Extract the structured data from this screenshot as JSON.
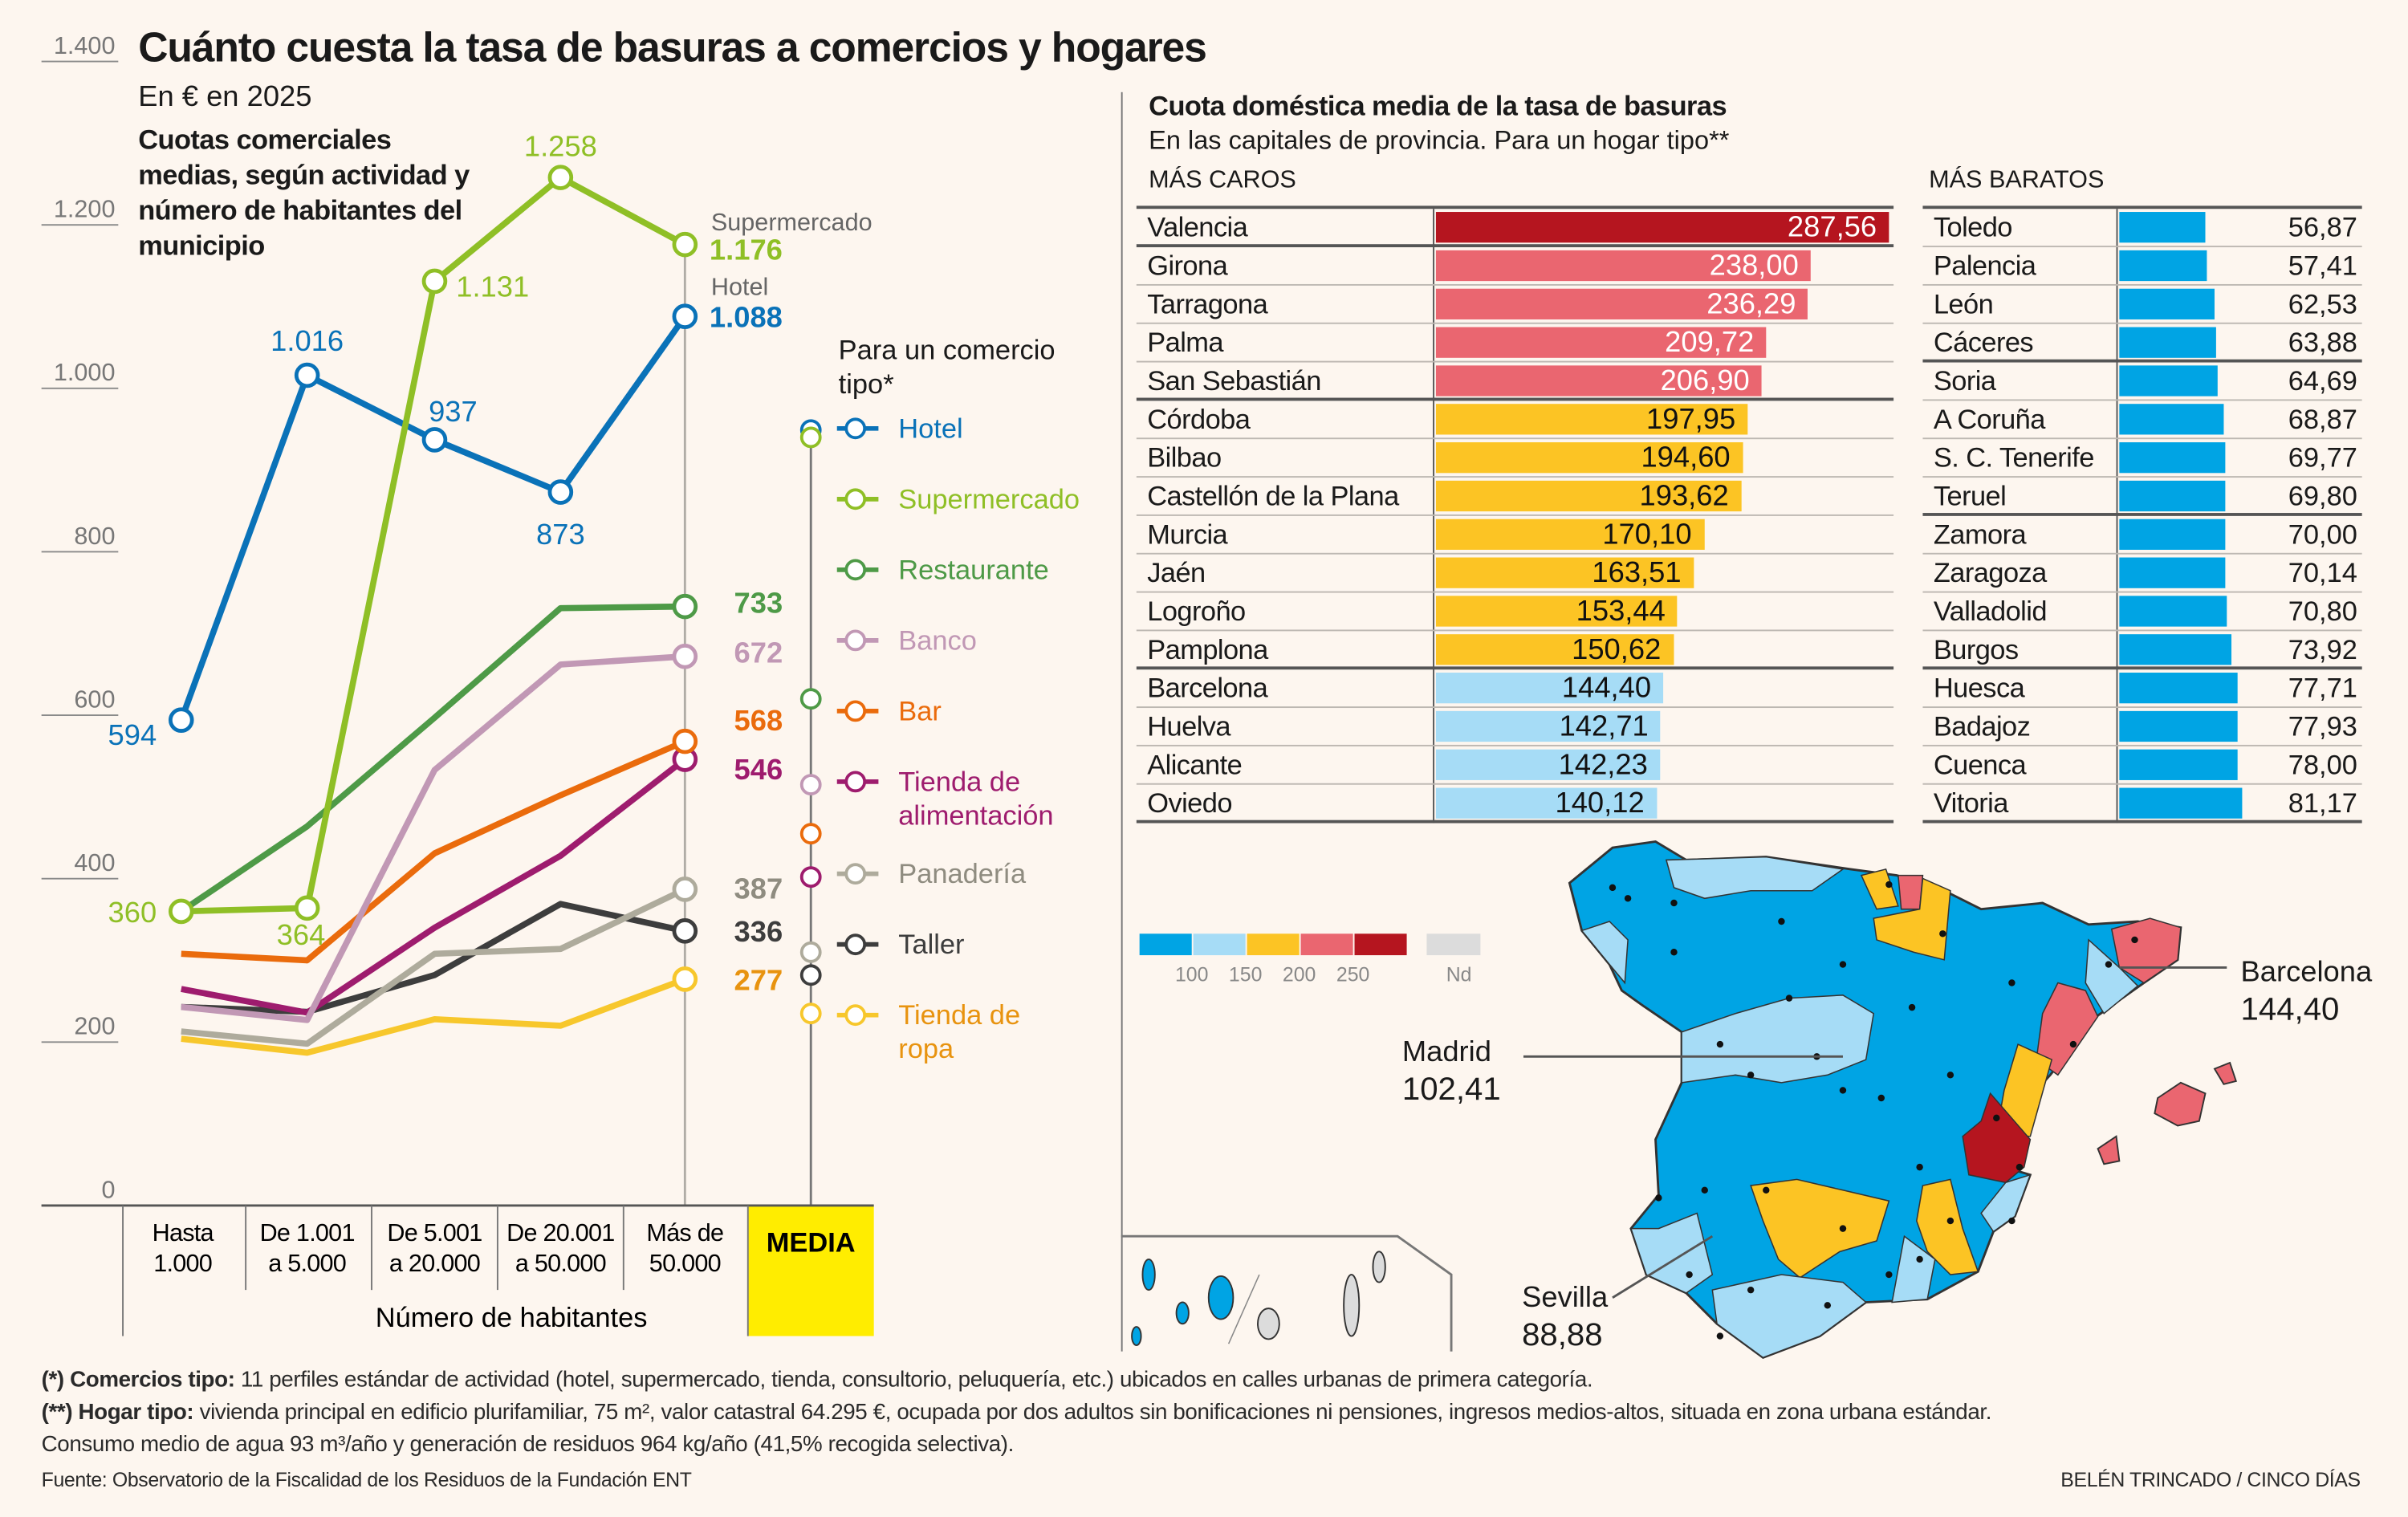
{
  "title": "Cuánto cuesta la tasa de basuras a comercios y hogares",
  "unit": "En € en 2025",
  "chart_data": [
    {
      "type": "line",
      "title": "Cuotas comerciales medias, según actividad y número de habitantes del municipio",
      "xlabel": "Número de habitantes",
      "ylabel": "",
      "categories": [
        [
          "Hasta",
          "1.000"
        ],
        [
          "De 1.001",
          "a 5.000"
        ],
        [
          "De 5.001",
          "a 20.000"
        ],
        [
          "De 20.001",
          "a 50.000"
        ],
        [
          "Más de",
          "50.000"
        ]
      ],
      "media_label": "MEDIA",
      "ylim": [
        0,
        1400
      ],
      "yticks": [
        0,
        200,
        400,
        600,
        800,
        1000,
        1200,
        1400
      ],
      "ytick_labels": [
        "0",
        "200",
        "400",
        "600",
        "800",
        "1.000",
        "1.200",
        "1.400"
      ],
      "grid": false,
      "legend_title": "Para un comercio tipo*",
      "legend_placement": "right",
      "end_headers": {
        "supermercado": "Supermercado",
        "hotel": "Hotel"
      },
      "series": [
        {
          "name": "Hotel",
          "color": "#0a72b8",
          "values": [
            594,
            1016,
            937,
            873,
            1088
          ],
          "media": 949,
          "labels": [
            "594",
            "1.016",
            "937",
            "873",
            "1.088"
          ]
        },
        {
          "name": "Supermercado",
          "color": "#8fbf26",
          "values": [
            360,
            364,
            1131,
            1258,
            1176
          ],
          "media": 940,
          "labels": [
            "360",
            "364",
            "1.131",
            "1.258",
            "1.176"
          ]
        },
        {
          "name": "Restaurante",
          "color": "#4e9a47",
          "values": [
            360,
            464,
            597,
            731,
            733
          ],
          "media": 620,
          "labels": [
            null,
            null,
            null,
            null,
            "733"
          ]
        },
        {
          "name": "Banco",
          "color": "#c198b5",
          "values": [
            243,
            227,
            533,
            662,
            672
          ],
          "media": 515,
          "labels": [
            null,
            null,
            null,
            null,
            "672"
          ]
        },
        {
          "name": "Bar",
          "color": "#ea6b0c",
          "values": [
            308,
            300,
            431,
            502,
            568
          ],
          "media": 455,
          "labels": [
            null,
            null,
            null,
            null,
            "568"
          ]
        },
        {
          "name": "Tienda de alimentación",
          "name_lines": [
            "Tienda de",
            "alimentación"
          ],
          "color": "#9e1c6e",
          "values": [
            265,
            236,
            340,
            428,
            546
          ],
          "media": 402,
          "labels": [
            null,
            null,
            null,
            null,
            "546"
          ]
        },
        {
          "name": "Panadería",
          "color": "#aeab9c",
          "values": [
            213,
            198,
            308,
            314,
            387
          ],
          "media": 310,
          "labels": [
            null,
            null,
            null,
            null,
            "387"
          ]
        },
        {
          "name": "Taller",
          "color": "#3d3d3d",
          "values": [
            243,
            237,
            282,
            369,
            336
          ],
          "media": 282,
          "labels": [
            null,
            null,
            null,
            null,
            "336"
          ]
        },
        {
          "name": "Tienda de ropa",
          "name_lines": [
            "Tienda de",
            "ropa"
          ],
          "color": "#f7c72c",
          "label_color": "#e8930f",
          "values": [
            204,
            187,
            228,
            220,
            277
          ],
          "media": 235,
          "labels": [
            null,
            null,
            null,
            null,
            "277"
          ]
        }
      ]
    },
    {
      "type": "bar",
      "title": "Cuota doméstica media de la tasa de basuras",
      "subtitle": "En las capitales de provincia. Para un hogar tipo**",
      "groups": [
        {
          "heading": "MÁS CAROS",
          "rows": [
            {
              "city": "Valencia",
              "value": 287.56,
              "label": "287,56"
            },
            {
              "city": "Girona",
              "value": 238.0,
              "label": "238,00"
            },
            {
              "city": "Tarragona",
              "value": 236.29,
              "label": "236,29"
            },
            {
              "city": "Palma",
              "value": 209.72,
              "label": "209,72"
            },
            {
              "city": "San Sebastián",
              "value": 206.9,
              "label": "206,90"
            },
            {
              "city": "Córdoba",
              "value": 197.95,
              "label": "197,95"
            },
            {
              "city": "Bilbao",
              "value": 194.6,
              "label": "194,60"
            },
            {
              "city": "Castellón de la Plana",
              "value": 193.62,
              "label": "193,62"
            },
            {
              "city": "Murcia",
              "value": 170.1,
              "label": "170,10"
            },
            {
              "city": "Jaén",
              "value": 163.51,
              "label": "163,51"
            },
            {
              "city": "Logroño",
              "value": 153.44,
              "label": "153,44"
            },
            {
              "city": "Pamplona",
              "value": 150.62,
              "label": "150,62"
            },
            {
              "city": "Barcelona",
              "value": 144.4,
              "label": "144,40"
            },
            {
              "city": "Huelva",
              "value": 142.71,
              "label": "142,71"
            },
            {
              "city": "Alicante",
              "value": 142.23,
              "label": "142,23"
            },
            {
              "city": "Oviedo",
              "value": 140.12,
              "label": "140,12"
            }
          ]
        },
        {
          "heading": "MÁS BARATOS",
          "rows": [
            {
              "city": "Toledo",
              "value": 56.87,
              "label": "56,87"
            },
            {
              "city": "Palencia",
              "value": 57.41,
              "label": "57,41"
            },
            {
              "city": "León",
              "value": 62.53,
              "label": "62,53"
            },
            {
              "city": "Cáceres",
              "value": 63.88,
              "label": "63,88"
            },
            {
              "city": "Soria",
              "value": 64.69,
              "label": "64,69"
            },
            {
              "city": "A Coruña",
              "value": 68.87,
              "label": "68,87"
            },
            {
              "city": "S. C. Tenerife",
              "value": 69.77,
              "label": "69,77"
            },
            {
              "city": "Teruel",
              "value": 69.8,
              "label": "69,80"
            },
            {
              "city": "Zamora",
              "value": 70.0,
              "label": "70,00"
            },
            {
              "city": "Zaragoza",
              "value": 70.14,
              "label": "70,14"
            },
            {
              "city": "Valladolid",
              "value": 70.8,
              "label": "70,80"
            },
            {
              "city": "Burgos",
              "value": 73.92,
              "label": "73,92"
            },
            {
              "city": "Huesca",
              "value": 77.71,
              "label": "77,71"
            },
            {
              "city": "Badajoz",
              "value": 77.93,
              "label": "77,93"
            },
            {
              "city": "Cuenca",
              "value": 78.0,
              "label": "78,00"
            },
            {
              "city": "Vitoria",
              "value": 81.17,
              "label": "81,17"
            }
          ]
        }
      ]
    }
  ],
  "map": {
    "legend": [
      {
        "color": "#00a4e4",
        "label": "100"
      },
      {
        "color": "#a6dcf6",
        "label": "150"
      },
      {
        "color": "#fcc424",
        "label": "200"
      },
      {
        "color": "#ea6670",
        "label": "250"
      },
      {
        "color": "#b5151f",
        "label": ""
      },
      {
        "color": "#dcdcdc",
        "label": "Nd"
      }
    ],
    "callouts": [
      {
        "city": "Madrid",
        "value": "102,41"
      },
      {
        "city": "Barcelona",
        "value": "144,40"
      },
      {
        "city": "Sevilla",
        "value": "88,88"
      }
    ]
  },
  "footnotes": {
    "note1_bold": "(*) Comercios tipo:",
    "note1": " 11 perfiles estándar de actividad (hotel, supermercado, tienda, consultorio, peluquería, etc.) ubicados en calles urbanas de primera categoría.",
    "note2_bold": "(**) Hogar tipo:",
    "note2": " vivienda principal en edificio plurifamiliar, 75 m², valor catastral 64.295 €, ocupada por dos adultos sin bonificaciones ni pensiones, ingresos medios-altos, situada en zona urbana estándar.",
    "note3": "Consumo medio de agua 93 m³/año y generación de residuos 964 kg/año (41,5% recogida selectiva).",
    "source": "Fuente: Observatorio de la Fiscalidad de los Residuos de la Fundación ENT",
    "credit": "BELÉN TRINCADO / CINCO DÍAS"
  }
}
